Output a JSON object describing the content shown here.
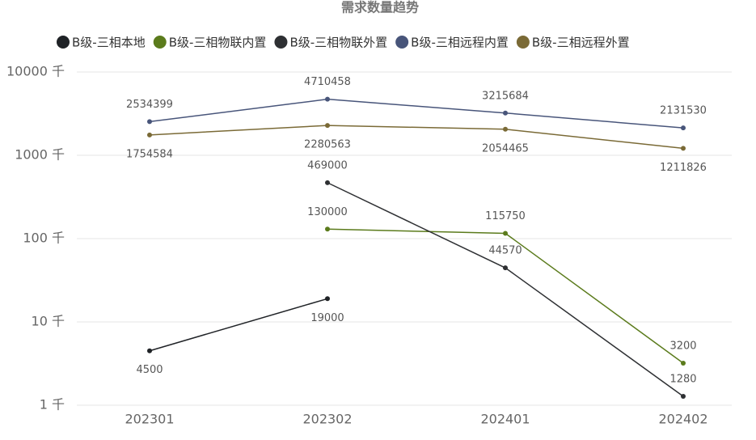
{
  "chart_data": {
    "type": "line",
    "title": "需求数量趋势",
    "categories": [
      "202301",
      "202302",
      "202401",
      "202402"
    ],
    "log_scale": true,
    "grid": true,
    "legend_position": "top",
    "ylim": [
      1,
      10000
    ],
    "yticks": [
      {
        "value": 1,
        "label": "1 千"
      },
      {
        "value": 10,
        "label": "10 千"
      },
      {
        "value": 100,
        "label": "100 千"
      },
      {
        "value": 1000,
        "label": "1000 千"
      },
      {
        "value": 10000,
        "label": "10000 千"
      }
    ],
    "series": [
      {
        "name": "B级-三相本地",
        "color": "#1f2226",
        "values": [
          4.5,
          19,
          null,
          null
        ],
        "value_labels": [
          "4500",
          "19000",
          null,
          null
        ]
      },
      {
        "name": "B级-三相物联内置",
        "color": "#5b7b1c",
        "values": [
          null,
          130,
          115.75,
          3.2
        ],
        "value_labels": [
          null,
          "130000",
          "115750",
          "3200"
        ]
      },
      {
        "name": "B级-三相物联外置",
        "color": "#2e3033",
        "values": [
          null,
          469,
          44.57,
          1.28
        ],
        "value_labels": [
          null,
          "469000",
          "44570",
          "1280"
        ]
      },
      {
        "name": "B级-三相远程内置",
        "color": "#48557a",
        "values": [
          2534.399,
          4710.458,
          3215.684,
          2131.53
        ],
        "value_labels": [
          "2534399",
          "4710458",
          "3215684",
          "2131530"
        ]
      },
      {
        "name": "B级-三相远程外置",
        "color": "#7a6a36",
        "values": [
          1754.584,
          2280.563,
          2054.465,
          1211.826
        ],
        "value_labels": [
          "1754584",
          "2280563",
          "2054465",
          "1211826"
        ]
      }
    ]
  }
}
